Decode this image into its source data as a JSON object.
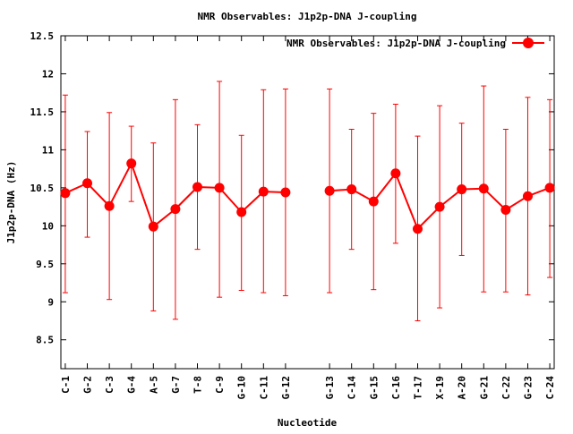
{
  "chart_data": {
    "type": "line",
    "title": "NMR Observables: J1p2p-DNA J-coupling",
    "xlabel": "Nucleotide",
    "ylabel": "J1p2p-DNA (Hz)",
    "ylim": [
      8.12,
      12.5
    ],
    "yticks": [
      "8.5",
      "9",
      "9.5",
      "10",
      "10.5",
      "11",
      "11.5",
      "12",
      "12.5"
    ],
    "ytick_values": [
      8.5,
      9,
      9.5,
      10,
      10.5,
      11,
      11.5,
      12,
      12.5
    ],
    "xlim": [
      -0.2,
      22.2
    ],
    "legend": {
      "position": "top-right",
      "label": "NMR Observables: J1p2p-DNA J-coupling"
    },
    "color": "#ff0000",
    "series": [
      {
        "name": "NMR Observables: J1p2p-DNA J-coupling",
        "points": [
          {
            "label": "C-1",
            "x": 0,
            "y": 10.43,
            "ylow": 9.12,
            "yhigh": 11.72
          },
          {
            "label": "G-2",
            "x": 1,
            "y": 10.56,
            "ylow": 9.85,
            "yhigh": 11.24
          },
          {
            "label": "C-3",
            "x": 2,
            "y": 10.26,
            "ylow": 9.03,
            "yhigh": 11.49
          },
          {
            "label": "G-4",
            "x": 3,
            "y": 10.82,
            "ylow": 10.32,
            "yhigh": 11.31
          },
          {
            "label": "A-5",
            "x": 4,
            "y": 9.99,
            "ylow": 8.88,
            "yhigh": 11.09
          },
          {
            "label": "G-7",
            "x": 5,
            "y": 10.22,
            "ylow": 8.77,
            "yhigh": 11.66
          },
          {
            "label": "T-8",
            "x": 6,
            "y": 10.51,
            "ylow": 9.69,
            "yhigh": 11.33
          },
          {
            "label": "C-9",
            "x": 7,
            "y": 10.5,
            "ylow": 9.06,
            "yhigh": 11.9
          },
          {
            "label": "G-10",
            "x": 8,
            "y": 10.18,
            "ylow": 9.15,
            "yhigh": 11.19
          },
          {
            "label": "C-11",
            "x": 9,
            "y": 10.45,
            "ylow": 9.12,
            "yhigh": 11.79
          },
          {
            "label": "G-12",
            "x": 10,
            "y": 10.44,
            "ylow": 9.08,
            "yhigh": 11.8
          },
          {
            "label": "G-13",
            "x": 12,
            "y": 10.46,
            "ylow": 9.12,
            "yhigh": 11.8
          },
          {
            "label": "C-14",
            "x": 13,
            "y": 10.48,
            "ylow": 9.69,
            "yhigh": 11.27
          },
          {
            "label": "G-15",
            "x": 14,
            "y": 10.32,
            "ylow": 9.16,
            "yhigh": 11.48
          },
          {
            "label": "C-16",
            "x": 15,
            "y": 10.69,
            "ylow": 9.77,
            "yhigh": 11.6
          },
          {
            "label": "T-17",
            "x": 16,
            "y": 9.96,
            "ylow": 8.75,
            "yhigh": 11.18
          },
          {
            "label": "X-19",
            "x": 17,
            "y": 10.25,
            "ylow": 8.92,
            "yhigh": 11.58
          },
          {
            "label": "A-20",
            "x": 18,
            "y": 10.48,
            "ylow": 9.61,
            "yhigh": 11.35
          },
          {
            "label": "G-21",
            "x": 19,
            "y": 10.49,
            "ylow": 9.13,
            "yhigh": 11.84
          },
          {
            "label": "C-22",
            "x": 20,
            "y": 10.21,
            "ylow": 9.13,
            "yhigh": 11.27
          },
          {
            "label": "G-23",
            "x": 21,
            "y": 10.39,
            "ylow": 9.09,
            "yhigh": 11.69
          },
          {
            "label": "C-24",
            "x": 22,
            "y": 10.5,
            "ylow": 9.32,
            "yhigh": 11.66
          }
        ]
      }
    ]
  }
}
